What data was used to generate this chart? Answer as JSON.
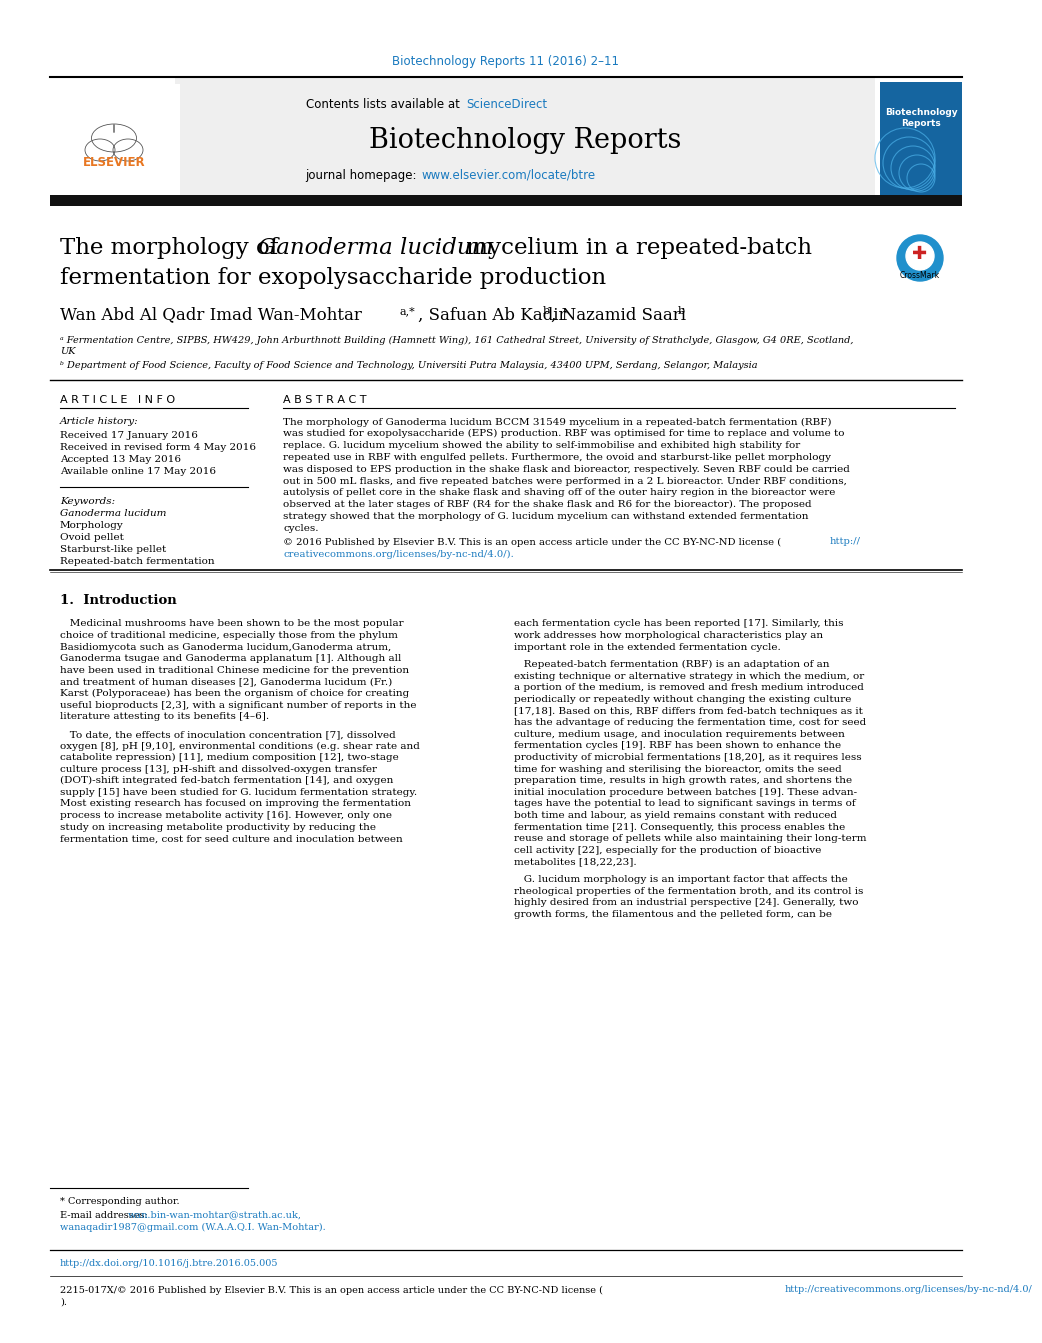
{
  "page_title_journal": "Biotechnology Reports 11 (2016) 2–11",
  "journal_name": "Biotechnology Reports",
  "contents_line": "Contents lists available at",
  "science_direct": "ScienceDirect",
  "journal_homepage_label": "journal homepage:",
  "journal_url": "www.elsevier.com/locate/btre",
  "paper_title_part1": "The morphology of ",
  "paper_title_italic": "Ganoderma lucidum",
  "paper_title_part2": " mycelium in a repeated-batch",
  "paper_title_line2": "fermentation for exopolysaccharide production",
  "authors_main": "Wan Abd Al Qadr Imad Wan-Mohtar",
  "authors_super1": "a,*",
  "authors_mid": ", Safuan Ab Kadir",
  "authors_super2": "b",
  "authors_end": ", Nazamid Saari",
  "authors_super3": "b",
  "affil_a": "ᵃ Fermentation Centre, SIPBS, HW429, John Arburthnott Building (Hamnett Wing), 161 Cathedral Street, University of Strathclyde, Glasgow, G4 0RE, Scotland,",
  "affil_a2": "UK",
  "affil_b": "ᵇ Department of Food Science, Faculty of Food Science and Technology, Universiti Putra Malaysia, 43400 UPM, Serdang, Selangor, Malaysia",
  "article_info_header": "A R T I C L E   I N F O",
  "abstract_header": "A B S T R A C T",
  "article_history_label": "Article history:",
  "received": "Received 17 January 2016",
  "received_revised": "Received in revised form 4 May 2016",
  "accepted": "Accepted 13 May 2016",
  "available": "Available online 17 May 2016",
  "keywords_label": "Keywords:",
  "keyword1": "Ganoderma lucidum",
  "keyword2": "Morphology",
  "keyword3": "Ovoid pellet",
  "keyword4": "Starburst-like pellet",
  "keyword5": "Repeated-batch fermentation",
  "abstract_lines": [
    "The morphology of Ganoderma lucidum BCCM 31549 mycelium in a repeated-batch fermentation (RBF)",
    "was studied for exopolysaccharide (EPS) production. RBF was optimised for time to replace and volume to",
    "replace. G. lucidum mycelium showed the ability to self-immobilise and exhibited high stability for",
    "repeated use in RBF with engulfed pellets. Furthermore, the ovoid and starburst-like pellet morphology",
    "was disposed to EPS production in the shake flask and bioreactor, respectively. Seven RBF could be carried",
    "out in 500 mL flasks, and five repeated batches were performed in a 2 L bioreactor. Under RBF conditions,",
    "autolysis of pellet core in the shake flask and shaving off of the outer hairy region in the bioreactor were",
    "observed at the later stages of RBF (R4 for the shake flask and R6 for the bioreactor). The proposed",
    "strategy showed that the morphology of G. lucidum mycelium can withstand extended fermentation",
    "cycles."
  ],
  "copyright1": "© 2016 Published by Elsevier B.V. This is an open access article under the CC BY-NC-ND license (",
  "copyright_link1": "http://",
  "copyright_link2": "creativecommons.org/licenses/by-nc-nd/4.0/).",
  "intro_header": "1.  Introduction",
  "intro_c1_p1": [
    "   Medicinal mushrooms have been shown to be the most popular",
    "choice of traditional medicine, especially those from the phylum",
    "Basidiomycota such as Ganoderma lucidum,Ganoderma atrum,",
    "Ganoderma tsugae and Ganoderma applanatum [1]. Although all",
    "have been used in traditional Chinese medicine for the prevention",
    "and treatment of human diseases [2], Ganoderma lucidum (Fr.)",
    "Karst (Polyporaceae) has been the organism of choice for creating",
    "useful bioproducts [2,3], with a significant number of reports in the",
    "literature attesting to its benefits [4–6]."
  ],
  "intro_c1_p2": [
    "   To date, the effects of inoculation concentration [7], dissolved",
    "oxygen [8], pH [9,10], environmental conditions (e.g. shear rate and",
    "catabolite repression) [11], medium composition [12], two-stage",
    "culture process [13], pH-shift and dissolved-oxygen transfer",
    "(DOT)-shift integrated fed-batch fermentation [14], and oxygen",
    "supply [15] have been studied for G. lucidum fermentation strategy.",
    "Most existing research has focused on improving the fermentation",
    "process to increase metabolite activity [16]. However, only one",
    "study on increasing metabolite productivity by reducing the",
    "fermentation time, cost for seed culture and inoculation between"
  ],
  "intro_c2_p1": [
    "each fermentation cycle has been reported [17]. Similarly, this",
    "work addresses how morphological characteristics play an",
    "important role in the extended fermentation cycle."
  ],
  "intro_c2_p2": [
    "   Repeated-batch fermentation (RBF) is an adaptation of an",
    "existing technique or alternative strategy in which the medium, or",
    "a portion of the medium, is removed and fresh medium introduced",
    "periodically or repeatedly without changing the existing culture",
    "[17,18]. Based on this, RBF differs from fed-batch techniques as it",
    "has the advantage of reducing the fermentation time, cost for seed",
    "culture, medium usage, and inoculation requirements between",
    "fermentation cycles [19]. RBF has been shown to enhance the",
    "productivity of microbial fermentations [18,20], as it requires less",
    "time for washing and sterilising the bioreactor, omits the seed",
    "preparation time, results in high growth rates, and shortens the",
    "initial inoculation procedure between batches [19]. These advan-",
    "tages have the potential to lead to significant savings in terms of",
    "both time and labour, as yield remains constant with reduced",
    "fermentation time [21]. Consequently, this process enables the",
    "reuse and storage of pellets while also maintaining their long-term",
    "cell activity [22], especially for the production of bioactive",
    "metabolites [18,22,23]."
  ],
  "intro_c2_p3": [
    "   G. lucidum morphology is an important factor that affects the",
    "rheological properties of the fermentation broth, and its control is",
    "highly desired from an industrial perspective [24]. Generally, two",
    "growth forms, the filamentous and the pelleted form, can be"
  ],
  "footer_star": "* Corresponding author.",
  "footer_email_label": "E-mail addresses:",
  "footer_email1": "wan.bin-wan-mohtar@strath.ac.uk,",
  "footer_email2": "wanaqadir1987@gmail.com (W.A.A.Q.I. Wan-Mohtar).",
  "footer_doi": "http://dx.doi.org/10.1016/j.btre.2016.05.005",
  "footer_issn1": "2215-017X/© 2016 Published by Elsevier B.V. This is an open access article under the CC BY-NC-ND license (",
  "footer_issn_link": "http://creativecommons.org/licenses/by-nc-nd/4.0/",
  "footer_issn2": ").",
  "header_bg_color": "#efefef",
  "link_color": "#1a7abf",
  "thick_bar_color": "#111111"
}
